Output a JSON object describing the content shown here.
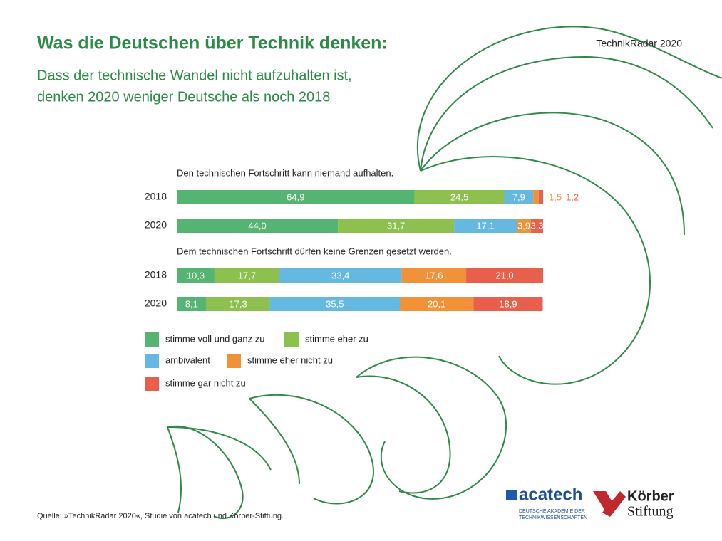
{
  "chart_data": {
    "type": "stacked-bar",
    "title": "Was die Deutschen über Technik denken:",
    "subtitle": [
      "Dass der technische Wandel nicht aufzuhalten ist,",
      "denken 2020 weniger Deutsche als noch 2018"
    ],
    "badge": "TechnikRadar 2020",
    "source": "Quelle: »TechnikRadar 2020«, Studie von acatech und Körber-Stiftung.",
    "xlim": [
      0,
      100
    ],
    "legend": [
      {
        "name": "stimme voll und ganz zu",
        "color": "#55b472"
      },
      {
        "name": "stimme eher zu",
        "color": "#8dc04f"
      },
      {
        "name": "ambivalent",
        "color": "#65b8df"
      },
      {
        "name": "stimme eher nicht zu",
        "color": "#f29238"
      },
      {
        "name": "stimme gar nicht zu",
        "color": "#e8604b"
      }
    ],
    "panels": [
      {
        "title": "Den technischen Fortschritt kann niemand aufhalten.",
        "categories": [
          "2018",
          "2020"
        ],
        "series": [
          {
            "values": [
              64.9,
              44.0
            ],
            "value_labels": [
              "64,9",
              "44,0"
            ]
          },
          {
            "values": [
              24.5,
              31.7
            ],
            "value_labels": [
              "24,5",
              "31,7"
            ]
          },
          {
            "values": [
              7.9,
              17.1
            ],
            "value_labels": [
              "7,9",
              "17,1"
            ]
          },
          {
            "values": [
              1.5,
              3.9
            ],
            "value_labels": [
              "1,5",
              "3,9"
            ]
          },
          {
            "values": [
              1.2,
              3.3
            ],
            "value_labels": [
              "1,2",
              "3,3"
            ]
          }
        ]
      },
      {
        "title": "Dem technischen Fortschritt dürfen keine Grenzen gesetzt werden.",
        "categories": [
          "2018",
          "2020"
        ],
        "series": [
          {
            "values": [
              10.3,
              8.1
            ],
            "value_labels": [
              "10,3",
              "8,1"
            ]
          },
          {
            "values": [
              17.7,
              17.3
            ],
            "value_labels": [
              "17,7",
              "17,3"
            ]
          },
          {
            "values": [
              33.4,
              35.5
            ],
            "value_labels": [
              "33,4",
              "35,5"
            ]
          },
          {
            "values": [
              17.6,
              20.1
            ],
            "value_labels": [
              "17,6",
              "20,1"
            ]
          },
          {
            "values": [
              21.0,
              18.9
            ],
            "value_labels": [
              "21,0",
              "18,9"
            ]
          }
        ]
      }
    ]
  },
  "logos": {
    "acatech": "acatech",
    "acatech_sub": [
      "DEUTSCHE AKADEMIE DER",
      "TECHNIKWISSENSCHAFTEN"
    ],
    "koerber": [
      "Körber",
      "Stiftung"
    ]
  }
}
